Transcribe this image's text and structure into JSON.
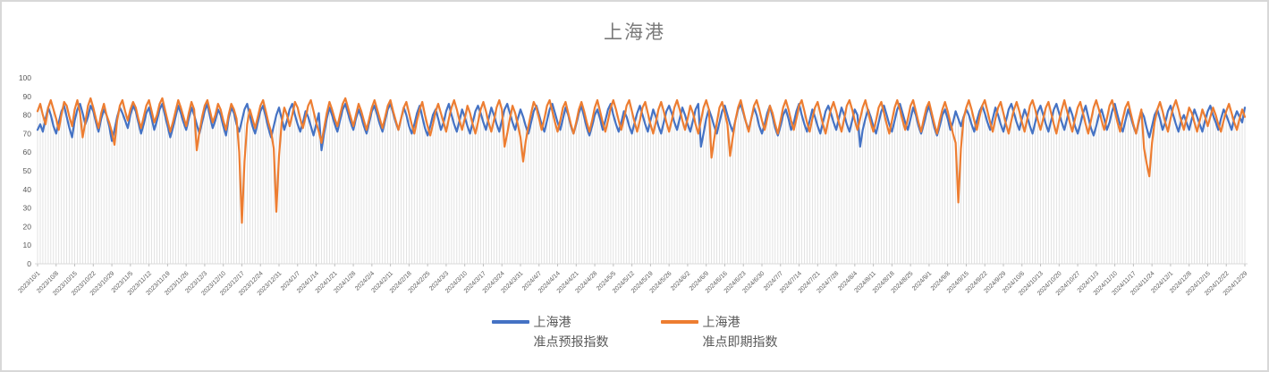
{
  "window": {
    "background": "#ffffff",
    "border_color": "#d8d8d8"
  },
  "chart": {
    "title": "上海港",
    "title_color": "#7a7a7a"
  },
  "legend": {
    "entries": [
      {
        "color": "#4472C4",
        "label_line1": "上海港",
        "label_line2": "准点预报指数"
      },
      {
        "color": "#ED7D31",
        "label_line1": "上海港",
        "label_line2": "准点即期指数"
      }
    ]
  },
  "chart_data": {
    "type": "line",
    "title": "上海港",
    "xlabel": "",
    "ylabel": "",
    "ylim": [
      0,
      100
    ],
    "y_ticks": [
      0,
      10,
      20,
      30,
      40,
      50,
      60,
      70,
      80,
      90,
      100
    ],
    "grid": "vertical-drop-lines",
    "legend_position": "bottom",
    "x_tick_interval_days": 7,
    "x_tick_labels": [
      "2023/10/1",
      "2023/10/8",
      "2023/10/15",
      "2023/10/22",
      "2023/10/29",
      "2023/11/5",
      "2023/11/12",
      "2023/11/19",
      "2023/11/26",
      "2023/12/3",
      "2023/12/10",
      "2023/12/17",
      "2023/12/24",
      "2023/12/31",
      "2024/1/7",
      "2024/1/14",
      "2024/1/21",
      "2024/1/28",
      "2024/2/4",
      "2024/2/11",
      "2024/2/18",
      "2024/2/25",
      "2024/3/3",
      "2024/3/10",
      "2024/3/17",
      "2024/3/24",
      "2024/3/31",
      "2024/4/7",
      "2024/4/14",
      "2024/4/21",
      "2024/4/28",
      "2024/5/5",
      "2024/5/12",
      "2024/5/19",
      "2024/5/26",
      "2024/6/2",
      "2024/6/9",
      "2024/6/16",
      "2024/6/23",
      "2024/6/30",
      "2024/7/7",
      "2024/7/14",
      "2024/7/21",
      "2024/7/28",
      "2024/8/4",
      "2024/8/11",
      "2024/8/18",
      "2024/8/25",
      "2024/9/1",
      "2024/9/8",
      "2024/9/15",
      "2024/9/22",
      "2024/9/29",
      "2024/10/6",
      "2024/10/13",
      "2024/10/20",
      "2024/10/27",
      "2024/11/3",
      "2024/11/10",
      "2024/11/17",
      "2024/11/24",
      "2024/12/1",
      "2024/12/8",
      "2024/12/15",
      "2024/12/22",
      "2024/12/29"
    ],
    "series": [
      {
        "name": "上海港 准点预报指数",
        "color": "#4472C4",
        "values": [
          72,
          75,
          71,
          78,
          84,
          80,
          74,
          70,
          76,
          82,
          85,
          79,
          73,
          68,
          77,
          83,
          86,
          81,
          75,
          79,
          85,
          82,
          76,
          71,
          78,
          83,
          80,
          74,
          66,
          72,
          79,
          84,
          81,
          77,
          73,
          80,
          85,
          82,
          76,
          70,
          75,
          81,
          84,
          78,
          72,
          77,
          83,
          86,
          80,
          74,
          68,
          73,
          79,
          85,
          81,
          76,
          72,
          78,
          84,
          80,
          75,
          70,
          76,
          82,
          86,
          79,
          73,
          77,
          83,
          80,
          74,
          69,
          78,
          84,
          81,
          75,
          71,
          77,
          83,
          86,
          80,
          74,
          70,
          76,
          82,
          85,
          79,
          73,
          68,
          74,
          80,
          84,
          78,
          72,
          77,
          83,
          86,
          80,
          75,
          71,
          76,
          82,
          79,
          74,
          69,
          75,
          81,
          61,
          70,
          78,
          84,
          80,
          75,
          71,
          77,
          83,
          86,
          81,
          76,
          72,
          78,
          83,
          79,
          74,
          70,
          76,
          82,
          85,
          80,
          75,
          71,
          77,
          83,
          86,
          81,
          76,
          72,
          78,
          84,
          80,
          74,
          70,
          75,
          81,
          85,
          79,
          73,
          69,
          74,
          80,
          83,
          78,
          72,
          76,
          82,
          86,
          80,
          75,
          71,
          77,
          83,
          79,
          74,
          70,
          76,
          82,
          85,
          81,
          76,
          72,
          78,
          84,
          80,
          75,
          71,
          77,
          83,
          86,
          81,
          76,
          72,
          78,
          83,
          79,
          74,
          70,
          76,
          82,
          85,
          80,
          75,
          71,
          77,
          83,
          86,
          81,
          76,
          72,
          78,
          84,
          80,
          74,
          70,
          75,
          81,
          85,
          79,
          73,
          69,
          74,
          80,
          83,
          78,
          72,
          77,
          83,
          86,
          80,
          75,
          71,
          76,
          82,
          79,
          74,
          70,
          76,
          81,
          85,
          80,
          75,
          71,
          77,
          83,
          79,
          74,
          70,
          76,
          82,
          85,
          81,
          76,
          72,
          78,
          84,
          80,
          75,
          71,
          77,
          83,
          86,
          63,
          70,
          78,
          83,
          79,
          74,
          70,
          76,
          82,
          85,
          80,
          75,
          71,
          77,
          83,
          86,
          81,
          76,
          72,
          78,
          84,
          80,
          74,
          70,
          75,
          81,
          85,
          79,
          73,
          69,
          74,
          80,
          83,
          78,
          72,
          76,
          82,
          86,
          80,
          75,
          71,
          77,
          83,
          79,
          74,
          70,
          76,
          82,
          85,
          81,
          76,
          72,
          78,
          84,
          80,
          75,
          71,
          77,
          83,
          80,
          63,
          72,
          78,
          83,
          79,
          74,
          70,
          76,
          82,
          85,
          80,
          75,
          71,
          77,
          83,
          86,
          81,
          76,
          72,
          78,
          84,
          80,
          74,
          70,
          75,
          81,
          85,
          79,
          73,
          69,
          74,
          80,
          83,
          78,
          72,
          76,
          82,
          78,
          74,
          79,
          83,
          80,
          75,
          71,
          77,
          82,
          85,
          81,
          76,
          72,
          78,
          84,
          80,
          75,
          71,
          77,
          83,
          86,
          81,
          76,
          72,
          78,
          83,
          79,
          74,
          70,
          76,
          82,
          85,
          80,
          75,
          71,
          77,
          83,
          86,
          81,
          76,
          72,
          78,
          84,
          80,
          74,
          70,
          75,
          81,
          85,
          79,
          73,
          69,
          74,
          80,
          83,
          78,
          72,
          76,
          82,
          86,
          80,
          75,
          71,
          77,
          83,
          79,
          74,
          70,
          76,
          82,
          79,
          73,
          68,
          74,
          80,
          83,
          78,
          72,
          76,
          82,
          85,
          80,
          75,
          71,
          77,
          80,
          76,
          72,
          78,
          83,
          79,
          75,
          71,
          77,
          82,
          85,
          80,
          76,
          72,
          78,
          83,
          80,
          76,
          72,
          78,
          82,
          79,
          76,
          84
        ]
      },
      {
        "name": "上海港 准点即期指数",
        "color": "#ED7D31",
        "values": [
          82,
          86,
          80,
          75,
          84,
          88,
          83,
          78,
          72,
          80,
          87,
          85,
          79,
          74,
          83,
          88,
          81,
          68,
          76,
          85,
          89,
          84,
          78,
          73,
          81,
          86,
          80,
          76,
          71,
          64,
          77,
          85,
          88,
          82,
          77,
          83,
          87,
          84,
          78,
          73,
          79,
          85,
          88,
          82,
          76,
          80,
          86,
          89,
          83,
          77,
          71,
          76,
          82,
          88,
          84,
          79,
          74,
          81,
          87,
          83,
          61,
          71,
          79,
          85,
          88,
          82,
          76,
          80,
          86,
          83,
          77,
          72,
          80,
          86,
          83,
          78,
          60,
          22,
          55,
          75,
          83,
          78,
          73,
          79,
          85,
          88,
          82,
          76,
          71,
          62,
          28,
          58,
          76,
          84,
          80,
          74,
          80,
          87,
          84,
          78,
          73,
          79,
          85,
          88,
          82,
          76,
          71,
          65,
          73,
          81,
          87,
          83,
          78,
          74,
          80,
          86,
          89,
          84,
          79,
          74,
          80,
          86,
          82,
          77,
          72,
          78,
          84,
          88,
          83,
          78,
          73,
          79,
          85,
          88,
          82,
          77,
          72,
          78,
          84,
          87,
          81,
          75,
          70,
          77,
          83,
          87,
          80,
          74,
          69,
          75,
          82,
          86,
          81,
          76,
          71,
          78,
          84,
          88,
          83,
          77,
          72,
          78,
          85,
          81,
          75,
          70,
          76,
          83,
          87,
          82,
          76,
          71,
          77,
          84,
          88,
          83,
          63,
          70,
          78,
          85,
          81,
          75,
          68,
          55,
          66,
          74,
          81,
          87,
          84,
          78,
          72,
          78,
          85,
          88,
          82,
          76,
          71,
          77,
          84,
          87,
          81,
          75,
          70,
          76,
          83,
          87,
          82,
          76,
          71,
          77,
          84,
          88,
          82,
          76,
          71,
          77,
          84,
          88,
          83,
          77,
          72,
          78,
          85,
          88,
          82,
          76,
          71,
          77,
          84,
          87,
          81,
          75,
          70,
          76,
          83,
          87,
          82,
          76,
          71,
          77,
          84,
          88,
          83,
          77,
          72,
          78,
          85,
          81,
          75,
          70,
          77,
          84,
          88,
          83,
          57,
          67,
          76,
          84,
          87,
          81,
          75,
          58,
          68,
          77,
          84,
          88,
          82,
          76,
          71,
          78,
          85,
          88,
          83,
          77,
          72,
          78,
          85,
          81,
          75,
          70,
          77,
          84,
          88,
          83,
          77,
          72,
          78,
          85,
          88,
          82,
          76,
          71,
          78,
          84,
          87,
          81,
          75,
          70,
          77,
          83,
          87,
          82,
          76,
          71,
          78,
          85,
          88,
          83,
          77,
          72,
          78,
          84,
          88,
          82,
          76,
          71,
          77,
          84,
          87,
          81,
          75,
          70,
          77,
          84,
          88,
          83,
          77,
          72,
          78,
          85,
          88,
          82,
          76,
          71,
          78,
          84,
          87,
          81,
          75,
          70,
          77,
          83,
          87,
          82,
          76,
          70,
          65,
          33,
          62,
          78,
          84,
          88,
          83,
          77,
          72,
          79,
          85,
          88,
          82,
          76,
          71,
          78,
          84,
          87,
          81,
          75,
          70,
          77,
          83,
          87,
          82,
          76,
          71,
          78,
          85,
          88,
          83,
          77,
          72,
          78,
          84,
          87,
          81,
          75,
          70,
          77,
          83,
          88,
          82,
          76,
          71,
          78,
          84,
          87,
          81,
          75,
          70,
          77,
          84,
          88,
          83,
          77,
          72,
          78,
          85,
          88,
          82,
          76,
          71,
          78,
          84,
          87,
          81,
          75,
          70,
          77,
          83,
          62,
          54,
          47,
          65,
          76,
          83,
          87,
          82,
          76,
          71,
          78,
          84,
          88,
          83,
          77,
          72,
          78,
          84,
          81,
          76,
          71,
          77,
          83,
          79,
          74,
          79,
          84,
          80,
          75,
          71,
          77,
          82,
          86,
          81,
          76,
          72,
          78,
          83,
          79
        ]
      }
    ]
  }
}
